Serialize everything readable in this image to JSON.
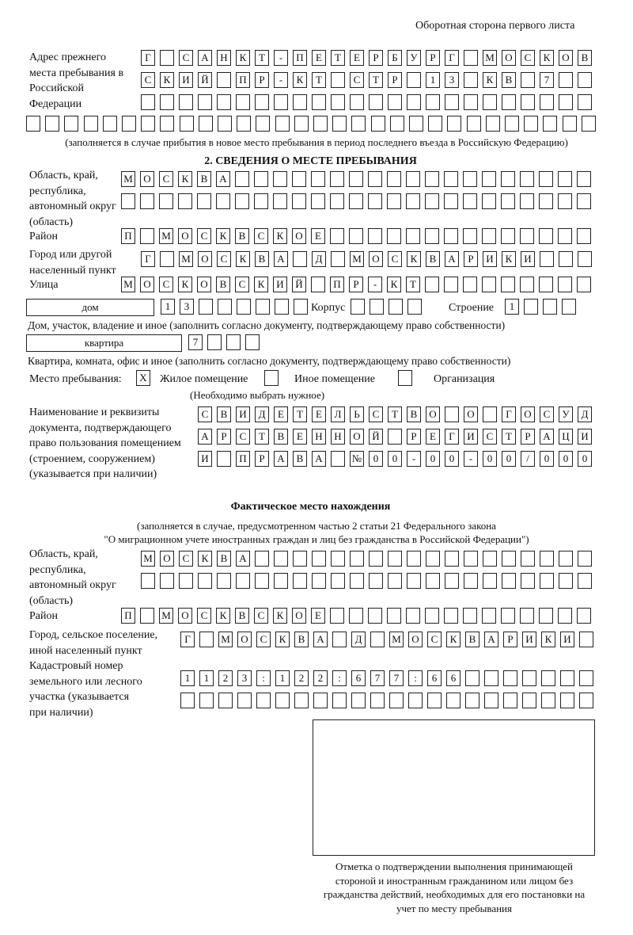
{
  "header": "Оборотная сторона первого листа",
  "prev_address": {
    "label": "Адрес прежнего места пребывания в Российской Федерации",
    "rows": [
      [
        "Г",
        "",
        "С",
        "А",
        "Н",
        "К",
        "Т",
        "-",
        "П",
        "Е",
        "Т",
        "Е",
        "Р",
        "Б",
        "У",
        "Р",
        "Г",
        "",
        "М",
        "О",
        "С",
        "К",
        "О",
        "В"
      ],
      [
        "С",
        "К",
        "И",
        "Й",
        "",
        "П",
        "Р",
        "-",
        "К",
        "Т",
        "",
        "С",
        "Т",
        "Р",
        "",
        "1",
        "3",
        "",
        "К",
        "В",
        "",
        "7",
        "",
        ""
      ],
      [
        "",
        "",
        "",
        "",
        "",
        "",
        "",
        "",
        "",
        "",
        "",
        "",
        "",
        "",
        "",
        "",
        "",
        "",
        "",
        "",
        "",
        "",
        "",
        ""
      ],
      [
        "",
        "",
        "",
        "",
        "",
        "",
        "",
        "",
        "",
        "",
        "",
        "",
        "",
        "",
        "",
        "",
        "",
        "",
        "",
        "",
        "",
        "",
        "",
        "",
        "",
        "",
        "",
        "",
        "",
        ""
      ]
    ],
    "hint": "(заполняется в случае прибытия в новое место пребывания в период последнего въезда в Российскую Федерацию)"
  },
  "section2": {
    "title": "2. СВЕДЕНИЯ О МЕСТЕ ПРЕБЫВАНИЯ",
    "region_label": "Область, край, республика, автономный округ (область)",
    "region_rows": [
      [
        "М",
        "О",
        "С",
        "К",
        "В",
        "А",
        "",
        "",
        "",
        "",
        "",
        "",
        "",
        "",
        "",
        "",
        "",
        "",
        "",
        "",
        "",
        "",
        "",
        "",
        ""
      ],
      [
        "",
        "",
        "",
        "",
        "",
        "",
        "",
        "",
        "",
        "",
        "",
        "",
        "",
        "",
        "",
        "",
        "",
        "",
        "",
        "",
        "",
        "",
        "",
        "",
        ""
      ]
    ],
    "district_label": "Район",
    "district_row": [
      "П",
      "",
      "М",
      "О",
      "С",
      "К",
      "В",
      "С",
      "К",
      "О",
      "Е",
      "",
      "",
      "",
      "",
      "",
      "",
      "",
      "",
      "",
      "",
      "",
      "",
      "",
      ""
    ],
    "city_label": "Город или другой населенный пункт",
    "city_row": [
      "Г",
      "",
      "М",
      "О",
      "С",
      "К",
      "В",
      "А",
      "",
      "Д",
      "",
      "М",
      "О",
      "С",
      "К",
      "В",
      "А",
      "Р",
      "И",
      "К",
      "И",
      "",
      "",
      ""
    ],
    "street_label": "Улица",
    "street_row": [
      "М",
      "О",
      "С",
      "К",
      "О",
      "В",
      "С",
      "К",
      "И",
      "Й",
      "",
      "П",
      "Р",
      "-",
      "К",
      "Т",
      "",
      "",
      "",
      "",
      "",
      "",
      "",
      "",
      ""
    ],
    "house_type": "дом",
    "house_cells": [
      "1",
      "3",
      "",
      "",
      "",
      "",
      "",
      ""
    ],
    "korpus_label": "Корпус",
    "korpus_cells": [
      "",
      "",
      "",
      ""
    ],
    "stroenie_label": "Строение",
    "stroenie_cells": [
      "1",
      "",
      "",
      ""
    ],
    "house_caption": "Дом, участок, владение и иное (заполнить согласно документу, подтверждающему право собственности)",
    "flat_type": "квартира",
    "flat_cells": [
      "7",
      "",
      "",
      ""
    ],
    "flat_caption": "Квартира, комната, офис и иное (заполнить согласно документу, подтверждающему право собственности)",
    "place_label": "Место пребывания:",
    "place_options": [
      {
        "mark": "X",
        "label": "Жилое помещение",
        "checked": true
      },
      {
        "mark": "",
        "label": "Иное помещение",
        "checked": false
      },
      {
        "mark": "",
        "label": "Организация",
        "checked": false
      }
    ],
    "place_hint": "(Необходимо выбрать нужное)",
    "doc_label": "Наименование и реквизиты документа, подтверждающего право пользования помещением (строением, сооружением) (указывается при наличии)",
    "doc_rows": [
      [
        "С",
        "В",
        "И",
        "Д",
        "Е",
        "Т",
        "Е",
        "Л",
        "Ь",
        "С",
        "Т",
        "В",
        "О",
        "",
        "О",
        "",
        "Г",
        "О",
        "С",
        "У",
        "Д"
      ],
      [
        "А",
        "Р",
        "С",
        "Т",
        "В",
        "Е",
        "Н",
        "Н",
        "О",
        "Й",
        "",
        "Р",
        "Е",
        "Г",
        "И",
        "С",
        "Т",
        "Р",
        "А",
        "Ц",
        "И"
      ],
      [
        "И",
        "",
        "П",
        "Р",
        "А",
        "В",
        "А",
        "",
        "№",
        "0",
        "0",
        "-",
        "0",
        "0",
        "-",
        "0",
        "0",
        "/",
        "0",
        "0",
        "0"
      ]
    ]
  },
  "actual": {
    "title": "Фактическое место нахождения",
    "subtitle1": "(заполняется в случае, предусмотренном частью 2 статьи 21 Федерального закона",
    "subtitle2": "\"О миграционном учете иностранных граждан и лиц без гражданства в Российской Федерации\")",
    "region_label": "Область, край, республика, автономный округ (область)",
    "region_rows": [
      [
        "М",
        "О",
        "С",
        "К",
        "В",
        "А",
        "",
        "",
        "",
        "",
        "",
        "",
        "",
        "",
        "",
        "",
        "",
        "",
        "",
        "",
        "",
        "",
        "",
        ""
      ],
      [
        "",
        "",
        "",
        "",
        "",
        "",
        "",
        "",
        "",
        "",
        "",
        "",
        "",
        "",
        "",
        "",
        "",
        "",
        "",
        "",
        "",
        "",
        "",
        ""
      ]
    ],
    "district_label": "Район",
    "district_row": [
      "П",
      "",
      "М",
      "О",
      "С",
      "К",
      "В",
      "С",
      "К",
      "О",
      "Е",
      "",
      "",
      "",
      "",
      "",
      "",
      "",
      "",
      "",
      "",
      "",
      "",
      "",
      ""
    ],
    "city_label": "Город, сельское поселение, иной населенный пункт",
    "city_row": [
      "Г",
      "",
      "М",
      "О",
      "С",
      "К",
      "В",
      "А",
      "",
      "Д",
      "",
      "М",
      "О",
      "С",
      "К",
      "В",
      "А",
      "Р",
      "И",
      "К",
      "И",
      ""
    ],
    "cadastre_label": "Кадастровый номер земельного или лесного участка (указывается при наличии)",
    "cadastre_rows": [
      [
        "1",
        "1",
        "2",
        "3",
        ":",
        "1",
        "2",
        "2",
        ":",
        "6",
        "7",
        "7",
        ":",
        "6",
        "6",
        "",
        "",
        "",
        "",
        "",
        "",
        ""
      ],
      [
        "",
        "",
        "",
        "",
        "",
        "",
        "",
        "",
        "",
        "",
        "",
        "",
        "",
        "",
        "",
        "",
        "",
        "",
        "",
        "",
        "",
        ""
      ]
    ]
  },
  "confirmation_caption": "Отметка о подтверждении выполнения принимающей стороной и иностранным гражданином или лицом без гражданства действий, необходимых для его постановки на учет по месту пребывания"
}
